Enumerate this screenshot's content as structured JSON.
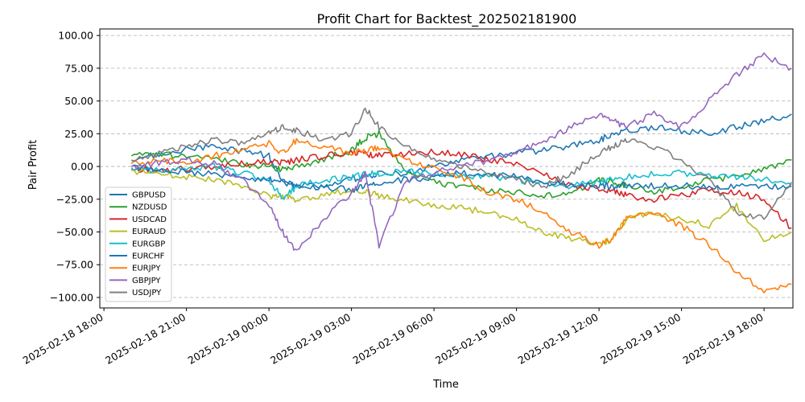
{
  "chart_data": {
    "type": "line",
    "title": "Profit Chart for Backtest_202502181900",
    "xlabel": "Time",
    "ylabel": "Pair Profit",
    "x_ticks": [
      "2025-02-18 18:00",
      "2025-02-18 21:00",
      "2025-02-19 00:00",
      "2025-02-19 03:00",
      "2025-02-19 06:00",
      "2025-02-19 09:00",
      "2025-02-19 12:00",
      "2025-02-19 15:00",
      "2025-02-19 18:00"
    ],
    "x_range_hours": [
      -0.15,
      25.05
    ],
    "ylim": [
      -108,
      105
    ],
    "y_ticks": [
      -100,
      -75,
      -50,
      -25,
      0,
      25,
      50,
      75,
      100
    ],
    "y_tick_labels": [
      "−100.00",
      "−75.00",
      "−50.00",
      "−25.00",
      "0.00",
      "25.00",
      "50.00",
      "75.00",
      "100.00"
    ],
    "grid": "y-dashed",
    "legend_position": "lower-left",
    "series_x_hours": [
      1.0,
      2.0,
      3.0,
      4.0,
      5.0,
      6.0,
      6.5,
      7.0,
      8.0,
      9.0,
      9.5,
      10.0,
      11.0,
      12.0,
      13.0,
      14.0,
      15.0,
      16.0,
      17.0,
      18.0,
      18.5,
      19.0,
      20.0,
      21.0,
      22.0,
      23.0,
      24.0,
      25.0
    ],
    "series": [
      {
        "name": "GBPUSD",
        "color": "#1f77b4",
        "values": [
          5,
          10,
          13,
          15,
          12,
          8,
          -12,
          -15,
          -14,
          -10,
          -7,
          -6,
          -5,
          0,
          5,
          8,
          10,
          12,
          16,
          20,
          25,
          28,
          30,
          27,
          25,
          30,
          35,
          40
        ]
      },
      {
        "name": "NZDUSD",
        "color": "#2ca02c",
        "values": [
          8,
          9,
          8,
          6,
          2,
          0,
          -2,
          0,
          6,
          12,
          22,
          25,
          -5,
          -12,
          -15,
          -18,
          -20,
          -22,
          -20,
          -10,
          -12,
          -15,
          -20,
          -15,
          -10,
          -8,
          -2,
          5
        ]
      },
      {
        "name": "USDCAD",
        "color": "#d62728",
        "values": [
          -2,
          -3,
          -2,
          0,
          2,
          4,
          3,
          5,
          8,
          10,
          10,
          8,
          10,
          11,
          9,
          5,
          2,
          -5,
          -15,
          -17,
          -18,
          -22,
          -25,
          -22,
          -18,
          -20,
          -25,
          -47
        ]
      },
      {
        "name": "EURAUD",
        "color": "#bcbd22",
        "values": [
          -3,
          -6,
          -8,
          -10,
          -15,
          -22,
          -23,
          -25,
          -22,
          -18,
          -20,
          -22,
          -25,
          -30,
          -32,
          -35,
          -40,
          -50,
          -55,
          -60,
          -55,
          -40,
          -35,
          -40,
          -45,
          -30,
          -55,
          -50
        ]
      },
      {
        "name": "EURGBP",
        "color": "#17becf",
        "values": [
          -1,
          -3,
          -2,
          0,
          -5,
          -10,
          -25,
          -15,
          -10,
          -8,
          -6,
          -5,
          -4,
          -6,
          -7,
          -8,
          -10,
          -12,
          -15,
          -12,
          -10,
          -8,
          -6,
          -5,
          -7,
          -8,
          -10,
          -14
        ]
      },
      {
        "name": "EURCHF",
        "color": "#1f77b4",
        "values": [
          0,
          -2,
          -4,
          -6,
          -8,
          -10,
          -12,
          -14,
          -16,
          -18,
          -15,
          -12,
          -10,
          -8,
          -5,
          -6,
          -8,
          -12,
          -14,
          -15,
          -15,
          -14,
          -15,
          -15,
          -15,
          -15,
          -15,
          -15
        ]
      },
      {
        "name": "EURJPY",
        "color": "#ff7f0e",
        "values": [
          2,
          5,
          3,
          8,
          12,
          18,
          10,
          20,
          15,
          10,
          12,
          15,
          5,
          -2,
          -8,
          -20,
          -25,
          -35,
          -50,
          -60,
          -55,
          -40,
          -35,
          -45,
          -60,
          -80,
          -95,
          -90
        ]
      },
      {
        "name": "GBPJPY",
        "color": "#9467bd",
        "values": [
          0,
          3,
          5,
          2,
          -10,
          -30,
          -50,
          -65,
          -40,
          -20,
          -5,
          -60,
          -10,
          -5,
          0,
          5,
          10,
          20,
          30,
          40,
          35,
          30,
          40,
          30,
          50,
          70,
          85,
          75
        ]
      },
      {
        "name": "USDJPY",
        "color": "#7f7f7f",
        "values": [
          5,
          10,
          15,
          20,
          18,
          25,
          30,
          28,
          20,
          25,
          45,
          30,
          15,
          5,
          0,
          -5,
          -10,
          -15,
          -5,
          10,
          15,
          20,
          15,
          5,
          -10,
          -35,
          -40,
          -12
        ]
      }
    ]
  }
}
